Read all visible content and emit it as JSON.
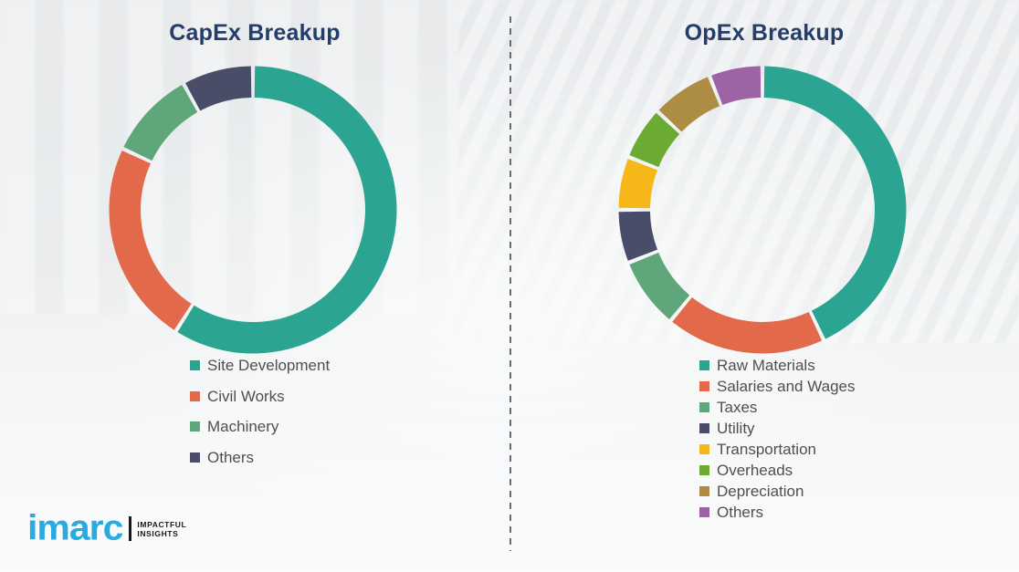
{
  "page": {
    "background_color": "#eceef0"
  },
  "divider": {
    "style": "vertical-dashed",
    "color": "#696d72"
  },
  "logo": {
    "wordmark": "imarc",
    "wordmark_color": "#29abe2",
    "tagline_line1": "IMPACTFUL",
    "tagline_line2": "INSIGHTS",
    "tagline_color": "#17181a",
    "bar_color": "#17181a"
  },
  "chart_data": [
    {
      "type": "pie",
      "style": "donut",
      "title": "CapEx Breakup",
      "title_color": "#253d6b",
      "unit": "percent",
      "start_angle_deg": 0,
      "direction": "clockwise",
      "legend_position": "below-chart",
      "categories": [
        "Site Development",
        "Civil Works",
        "Machinery",
        "Others"
      ],
      "values": [
        59,
        23,
        10,
        8
      ],
      "colors": [
        "#2ba592",
        "#e2694a",
        "#5fa77b",
        "#494d68"
      ]
    },
    {
      "type": "pie",
      "style": "donut",
      "title": "OpEx Breakup",
      "title_color": "#253d6b",
      "unit": "percent",
      "start_angle_deg": 0,
      "direction": "clockwise",
      "legend_position": "below-chart",
      "categories": [
        "Raw Materials",
        "Salaries and Wages",
        "Taxes",
        "Utility",
        "Transportation",
        "Overheads",
        "Depreciation",
        "Others"
      ],
      "values": [
        43,
        18,
        8,
        6,
        6,
        6,
        7,
        6
      ],
      "colors": [
        "#2ba592",
        "#e2694a",
        "#5fa77b",
        "#494d68",
        "#f6b719",
        "#6baa33",
        "#ad8c43",
        "#9e63a5"
      ]
    }
  ]
}
